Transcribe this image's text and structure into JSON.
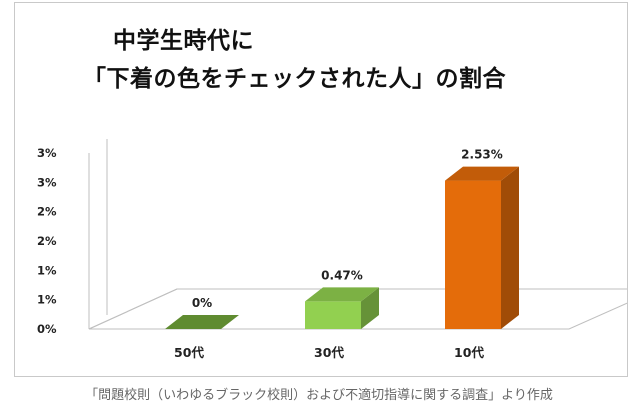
{
  "chart_data": {
    "type": "bar",
    "title_lines": [
      "中学生時代に",
      "「下着の色をチェックされた人」の割合"
    ],
    "categories": [
      "50代",
      "30代",
      "10代"
    ],
    "values": [
      0,
      0.47,
      2.53
    ],
    "data_labels": [
      "0%",
      "0.47%",
      "2.53%"
    ],
    "y_tick_labels": [
      "0%",
      "1%",
      "1%",
      "2%",
      "2%",
      "3%",
      "3%"
    ],
    "ylim": [
      0,
      3
    ],
    "bar_colors": [
      "#6a9a35",
      "#92d050",
      "#e46c0a"
    ],
    "grid": false,
    "legend": "none",
    "projection": "3d"
  },
  "footer": {
    "source": "「問題校則（いわゆるブラック校則）および不適切指導に関する調査」より作成"
  }
}
